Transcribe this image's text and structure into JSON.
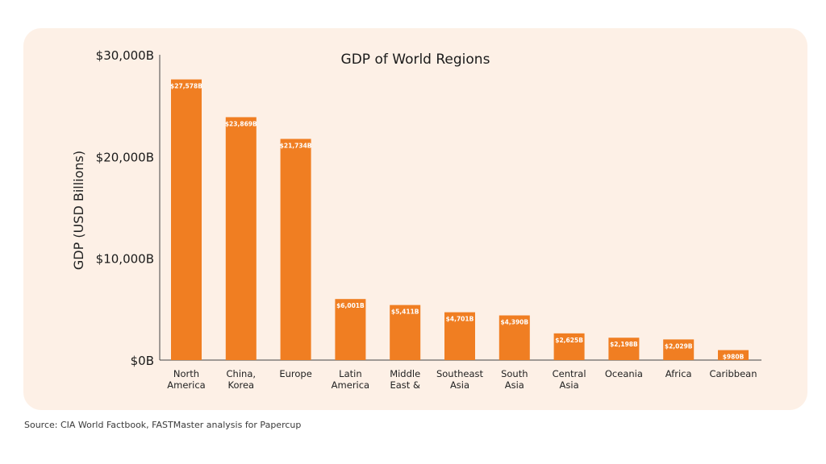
{
  "source_note": "Source: CIA World Factbook, FASTMaster analysis for Papercup",
  "colors": {
    "bar": "#f07e22",
    "background": "#fdf0e6",
    "axis": "#444444",
    "text": "#222222"
  },
  "chart_data": {
    "type": "bar",
    "title": "GDP of World Regions",
    "xlabel": "",
    "ylabel": "GDP (USD Billions)",
    "ylim": [
      0,
      30000
    ],
    "yticks": [
      0,
      10000,
      20000,
      30000
    ],
    "ytick_labels": [
      "$0B",
      "$10,000B",
      "$20,000B",
      "$30,000B"
    ],
    "grid": false,
    "categories": [
      [
        "North",
        "America"
      ],
      [
        "China,",
        "Korea"
      ],
      [
        "Europe"
      ],
      [
        "Latin",
        "America"
      ],
      [
        "Middle",
        "East &"
      ],
      [
        "Southeast",
        "Asia"
      ],
      [
        "South",
        "Asia"
      ],
      [
        "Central",
        "Asia"
      ],
      [
        "Oceania"
      ],
      [
        "Africa"
      ],
      [
        "Caribbean"
      ]
    ],
    "values": [
      27578,
      23869,
      21734,
      6001,
      5411,
      4701,
      4390,
      2625,
      2198,
      2029,
      980
    ],
    "data_labels": [
      "$27,578B",
      "$23,869B",
      "$21,734B",
      "$6,001B",
      "$5,411B",
      "$4,701B",
      "$4,390B",
      "$2,625B",
      "$2,198B",
      "$2,029B",
      "$980B"
    ]
  }
}
